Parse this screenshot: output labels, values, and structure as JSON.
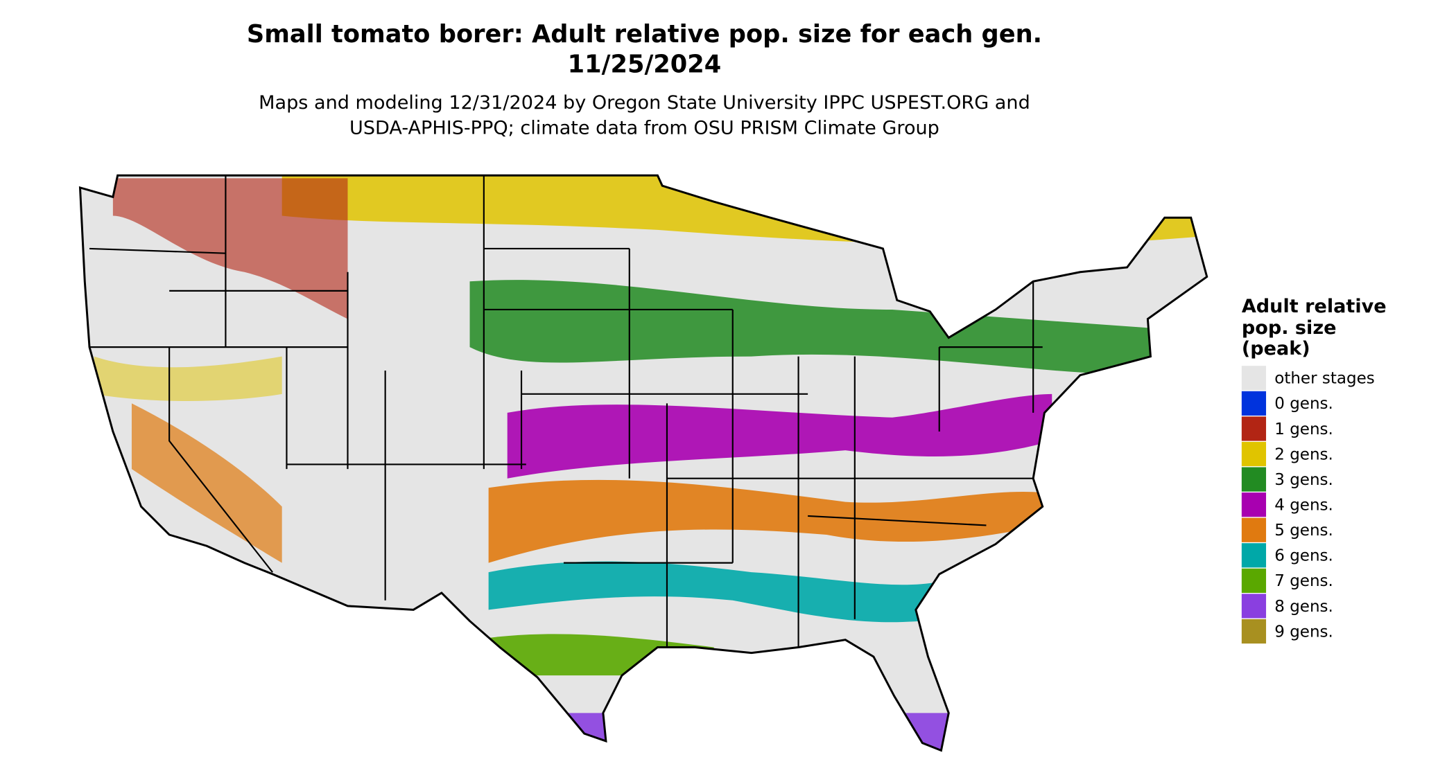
{
  "header": {
    "title": [
      "Small tomato borer: Adult relative pop. size for each gen.",
      "11/25/2024"
    ],
    "subtitle": [
      "Maps and modeling 12/31/2024 by Oregon State University IPPC USPEST.ORG and",
      "USDA-APHIS-PPQ; climate data from OSU PRISM Climate Group"
    ]
  },
  "legend": {
    "title": [
      "Adult relative",
      "pop. size",
      "(peak)"
    ],
    "items": [
      {
        "label": "other stages",
        "color": "#e5e5e5"
      },
      {
        "label": "0 gens.",
        "color": "#0033dd"
      },
      {
        "label": "1 gens.",
        "color": "#b22514"
      },
      {
        "label": "2 gens.",
        "color": "#e0c400"
      },
      {
        "label": "3 gens.",
        "color": "#228b22"
      },
      {
        "label": "4 gens.",
        "color": "#a800b0"
      },
      {
        "label": "5 gens.",
        "color": "#e07a10"
      },
      {
        "label": "6 gens.",
        "color": "#00a8a8"
      },
      {
        "label": "7 gens.",
        "color": "#5aa800"
      },
      {
        "label": "8 gens.",
        "color": "#8a3fe0"
      },
      {
        "label": "9 gens.",
        "color": "#a89020"
      }
    ]
  }
}
